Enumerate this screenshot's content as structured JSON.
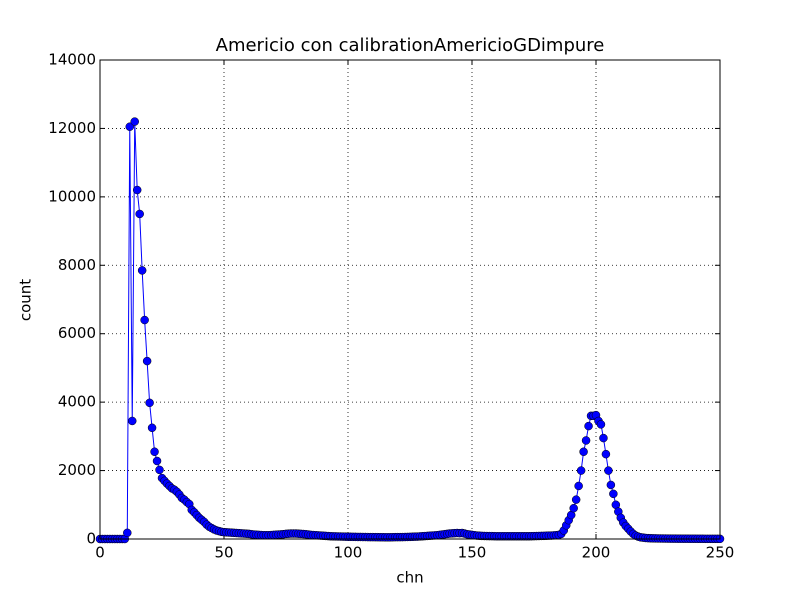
{
  "chart_data": {
    "type": "line",
    "title": "Americio con calibrationAmericioGDimpure",
    "x_label": "chn",
    "y_label": "count",
    "x": [
      0,
      1,
      2,
      3,
      4,
      5,
      6,
      7,
      8,
      9,
      10,
      11,
      12,
      13,
      14,
      15,
      16,
      17,
      18,
      19,
      20,
      21,
      22,
      23,
      24,
      25,
      26,
      27,
      28,
      29,
      30,
      31,
      32,
      33,
      34,
      35,
      36,
      37,
      38,
      39,
      40,
      41,
      42,
      43,
      44,
      45,
      46,
      47,
      48,
      49,
      50,
      51,
      52,
      53,
      54,
      55,
      56,
      57,
      58,
      59,
      60,
      61,
      62,
      63,
      64,
      65,
      66,
      67,
      68,
      69,
      70,
      71,
      72,
      73,
      74,
      75,
      76,
      77,
      78,
      79,
      80,
      81,
      82,
      83,
      84,
      85,
      86,
      87,
      88,
      89,
      90,
      91,
      92,
      93,
      94,
      95,
      96,
      97,
      98,
      99,
      100,
      101,
      102,
      103,
      104,
      105,
      106,
      107,
      108,
      109,
      110,
      111,
      112,
      113,
      114,
      115,
      116,
      117,
      118,
      119,
      120,
      121,
      122,
      123,
      124,
      125,
      126,
      127,
      128,
      129,
      130,
      131,
      132,
      133,
      134,
      135,
      136,
      137,
      138,
      139,
      140,
      141,
      142,
      143,
      144,
      145,
      146,
      147,
      148,
      149,
      150,
      151,
      152,
      153,
      154,
      155,
      156,
      157,
      158,
      159,
      160,
      161,
      162,
      163,
      164,
      165,
      166,
      167,
      168,
      169,
      170,
      171,
      172,
      173,
      174,
      175,
      176,
      177,
      178,
      179,
      180,
      181,
      182,
      183,
      184,
      185,
      186,
      187,
      188,
      189,
      190,
      191,
      192,
      193,
      194,
      195,
      196,
      197,
      198,
      199,
      200,
      201,
      202,
      203,
      204,
      205,
      206,
      207,
      208,
      209,
      210,
      211,
      212,
      213,
      214,
      215,
      216,
      217,
      218,
      219,
      220,
      221,
      222,
      223,
      224,
      225,
      226,
      227,
      228,
      229,
      230,
      231,
      232,
      233,
      234,
      235,
      236,
      237,
      238,
      239,
      240,
      241,
      242,
      243,
      244,
      245,
      246,
      247,
      248,
      249,
      250
    ],
    "series": [
      {
        "name": "count",
        "color": "#0000ff",
        "values": [
          0,
          0,
          0,
          0,
          0,
          0,
          0,
          0,
          0,
          0,
          0,
          180,
          12050,
          3450,
          12200,
          10200,
          9500,
          7850,
          6400,
          5200,
          3980,
          3250,
          2550,
          2280,
          2020,
          1780,
          1700,
          1620,
          1550,
          1480,
          1440,
          1380,
          1300,
          1200,
          1150,
          1080,
          1020,
          850,
          780,
          700,
          620,
          560,
          500,
          420,
          360,
          320,
          280,
          250,
          230,
          210,
          200,
          195,
          190,
          185,
          180,
          175,
          170,
          165,
          160,
          155,
          150,
          140,
          130,
          125,
          120,
          115,
          110,
          110,
          110,
          115,
          120,
          125,
          130,
          135,
          140,
          150,
          155,
          160,
          160,
          160,
          155,
          150,
          145,
          140,
          130,
          120,
          115,
          110,
          105,
          100,
          95,
          90,
          85,
          80,
          78,
          76,
          74,
          72,
          70,
          68,
          65,
          64,
          63,
          62,
          60,
          60,
          58,
          58,
          56,
          55,
          55,
          54,
          53,
          52,
          52,
          50,
          50,
          50,
          52,
          54,
          55,
          55,
          56,
          58,
          60,
          62,
          65,
          68,
          70,
          75,
          80,
          85,
          90,
          95,
          100,
          105,
          110,
          120,
          130,
          140,
          150,
          160,
          165,
          170,
          175,
          170,
          175,
          160,
          140,
          130,
          120,
          110,
          100,
          95,
          90,
          88,
          86,
          85,
          84,
          82,
          80,
          80,
          80,
          80,
          80,
          80,
          80,
          80,
          80,
          80,
          80,
          80,
          80,
          80,
          82,
          84,
          86,
          88,
          90,
          92,
          95,
          98,
          100,
          105,
          110,
          120,
          150,
          250,
          400,
          550,
          700,
          900,
          1150,
          1550,
          2000,
          2550,
          2880,
          3300,
          3600,
          3600,
          3620,
          3450,
          3350,
          2950,
          2480,
          2000,
          1580,
          1320,
          1000,
          800,
          620,
          480,
          380,
          300,
          220,
          150,
          100,
          70,
          50,
          40,
          30,
          25,
          22,
          20,
          18,
          16,
          15,
          14,
          13,
          12,
          11,
          10,
          10,
          9,
          9,
          8,
          8,
          8,
          7,
          7,
          7,
          6,
          6,
          6,
          5,
          5,
          5,
          5,
          5,
          5,
          5
        ]
      }
    ],
    "xlim": [
      0,
      250
    ],
    "xticks": [
      0,
      50,
      100,
      150,
      200,
      250
    ],
    "ylim": [
      0,
      14000
    ],
    "yticks": [
      0,
      2000,
      4000,
      6000,
      8000,
      10000,
      12000,
      14000
    ],
    "grid": true
  }
}
